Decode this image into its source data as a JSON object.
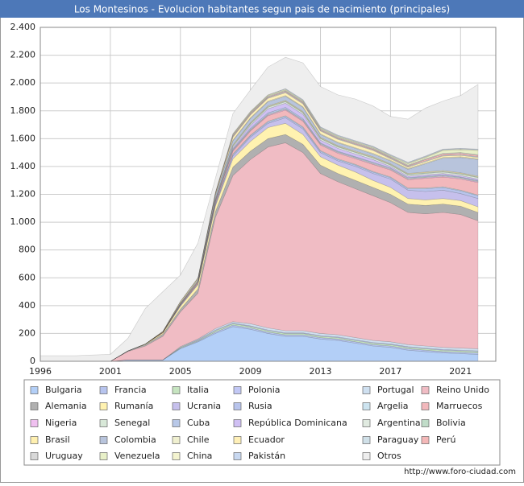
{
  "chart_data": {
    "type": "stacked_area",
    "title": "Los Montesinos - Evolucion habitantes segun pais de nacimiento (principales)",
    "source": "http://www.foro-ciudad.com",
    "categories": [
      "1996",
      null,
      null,
      null,
      "2001",
      null,
      null,
      null,
      "2005",
      null,
      null,
      null,
      "2009",
      null,
      null,
      null,
      "2013",
      null,
      null,
      null,
      "2017",
      null,
      null,
      null,
      "2021",
      null
    ],
    "ylim": [
      0,
      2400
    ],
    "yticks": [
      0,
      200,
      400,
      600,
      800,
      {
        "value": 1000,
        "label": "1.000"
      },
      {
        "value": 1200,
        "label": "1.200"
      },
      {
        "value": 1400,
        "label": "1.400"
      },
      {
        "value": 1600,
        "label": "1.600"
      },
      {
        "value": 1800,
        "label": "1.800"
      },
      {
        "value": 2000,
        "label": "2.000"
      },
      {
        "value": 2200,
        "label": "2.200"
      },
      {
        "value": 2400,
        "label": "2.400"
      }
    ],
    "grid": true,
    "series": [
      {
        "name": "Bulgaria",
        "color": "#b3cff7",
        "values": [
          0,
          0,
          0,
          0,
          0,
          10,
          10,
          10,
          90,
          140,
          200,
          250,
          230,
          200,
          180,
          180,
          160,
          150,
          130,
          110,
          100,
          80,
          70,
          60,
          55,
          50
        ]
      },
      {
        "name": "Francia",
        "color": "#b7c4ee",
        "values": [
          0,
          0,
          0,
          0,
          0,
          0,
          0,
          0,
          5,
          5,
          10,
          10,
          10,
          10,
          10,
          10,
          10,
          10,
          10,
          10,
          10,
          10,
          10,
          10,
          10,
          10
        ]
      },
      {
        "name": "Italia",
        "color": "#c6e4c0",
        "values": [
          0,
          0,
          0,
          0,
          0,
          0,
          0,
          0,
          5,
          5,
          10,
          10,
          10,
          10,
          10,
          10,
          10,
          10,
          10,
          10,
          10,
          10,
          10,
          10,
          10,
          10
        ]
      },
      {
        "name": "Polonia",
        "color": "#c2c8f5",
        "values": [
          0,
          0,
          0,
          0,
          0,
          0,
          0,
          0,
          0,
          5,
          5,
          5,
          5,
          5,
          5,
          5,
          5,
          5,
          5,
          5,
          5,
          5,
          5,
          5,
          5,
          5
        ]
      },
      {
        "name": "Portugal",
        "color": "#cfe0f0",
        "values": [
          0,
          0,
          0,
          0,
          0,
          0,
          0,
          0,
          5,
          5,
          10,
          10,
          15,
          15,
          15,
          15,
          15,
          15,
          15,
          15,
          15,
          15,
          15,
          15,
          15,
          15
        ]
      },
      {
        "name": "Reino Unido",
        "color": "#f0bcc4",
        "values": [
          0,
          0,
          0,
          0,
          0,
          60,
          100,
          170,
          250,
          330,
          800,
          1050,
          1180,
          1300,
          1350,
          1280,
          1150,
          1100,
          1070,
          1040,
          1000,
          950,
          950,
          970,
          960,
          920
        ]
      },
      {
        "name": "Alemania",
        "color": "#b0b0b0",
        "values": [
          0,
          0,
          0,
          0,
          0,
          5,
          10,
          15,
          20,
          30,
          40,
          60,
          60,
          60,
          60,
          60,
          60,
          60,
          60,
          60,
          60,
          60,
          60,
          60,
          60,
          60
        ]
      },
      {
        "name": "Rumanía",
        "color": "#fff2b0",
        "values": [
          0,
          0,
          0,
          0,
          0,
          0,
          5,
          10,
          20,
          30,
          40,
          60,
          70,
          80,
          80,
          70,
          60,
          60,
          60,
          50,
          50,
          40,
          40,
          40,
          40,
          40
        ]
      },
      {
        "name": "Ucrania",
        "color": "#c6c0ec",
        "values": [
          0,
          0,
          0,
          0,
          0,
          0,
          0,
          0,
          5,
          5,
          10,
          20,
          30,
          30,
          40,
          40,
          30,
          30,
          40,
          50,
          60,
          60,
          60,
          60,
          50,
          60
        ]
      },
      {
        "name": "Rusia",
        "color": "#b8c4ec",
        "values": [
          0,
          0,
          0,
          0,
          0,
          0,
          0,
          0,
          5,
          5,
          5,
          10,
          10,
          10,
          10,
          10,
          10,
          10,
          10,
          10,
          10,
          10,
          20,
          20,
          20,
          20
        ]
      },
      {
        "name": "Argelia",
        "color": "#cde4f0",
        "values": [
          0,
          0,
          0,
          0,
          0,
          0,
          0,
          0,
          0,
          0,
          5,
          5,
          5,
          5,
          5,
          5,
          5,
          5,
          5,
          5,
          5,
          5,
          5,
          5,
          5,
          5
        ]
      },
      {
        "name": "Marruecos",
        "color": "#f2b8bc",
        "values": [
          0,
          0,
          0,
          0,
          0,
          0,
          0,
          5,
          5,
          10,
          10,
          20,
          30,
          40,
          40,
          40,
          40,
          40,
          40,
          50,
          50,
          60,
          70,
          70,
          80,
          90
        ]
      },
      {
        "name": "Nigeria",
        "color": "#f0c0f0",
        "values": [
          0,
          0,
          0,
          0,
          0,
          0,
          0,
          0,
          0,
          0,
          5,
          5,
          5,
          5,
          5,
          5,
          5,
          5,
          5,
          5,
          5,
          5,
          5,
          5,
          5,
          5
        ]
      },
      {
        "name": "Senegal",
        "color": "#d8e8d8",
        "values": [
          0,
          0,
          0,
          0,
          0,
          0,
          0,
          0,
          0,
          0,
          0,
          5,
          5,
          5,
          5,
          5,
          5,
          5,
          5,
          5,
          5,
          5,
          5,
          5,
          5,
          5
        ]
      },
      {
        "name": "Cuba",
        "color": "#b8c8e8",
        "values": [
          0,
          0,
          0,
          0,
          0,
          0,
          0,
          0,
          0,
          0,
          5,
          5,
          10,
          10,
          10,
          10,
          5,
          5,
          5,
          5,
          5,
          5,
          5,
          5,
          5,
          5
        ]
      },
      {
        "name": "República Dominicana",
        "color": "#d0c0f4",
        "values": [
          0,
          0,
          0,
          0,
          0,
          0,
          0,
          0,
          0,
          0,
          5,
          10,
          20,
          30,
          30,
          30,
          20,
          20,
          20,
          20,
          10,
          10,
          10,
          10,
          10,
          10
        ]
      },
      {
        "name": "Argentina",
        "color": "#e0eae0",
        "values": [
          0,
          0,
          0,
          0,
          0,
          0,
          0,
          0,
          5,
          5,
          5,
          10,
          10,
          10,
          10,
          10,
          10,
          10,
          10,
          10,
          10,
          10,
          10,
          10,
          10,
          10
        ]
      },
      {
        "name": "Bolivia",
        "color": "#c0dcc8",
        "values": [
          0,
          0,
          0,
          0,
          0,
          0,
          0,
          0,
          0,
          0,
          0,
          5,
          5,
          5,
          5,
          5,
          5,
          5,
          5,
          5,
          5,
          5,
          5,
          5,
          5,
          5
        ]
      },
      {
        "name": "Brasil",
        "color": "#fff0b0",
        "values": [
          0,
          0,
          0,
          0,
          0,
          0,
          0,
          0,
          0,
          5,
          5,
          5,
          5,
          5,
          5,
          5,
          5,
          5,
          5,
          5,
          5,
          5,
          5,
          5,
          5,
          5
        ]
      },
      {
        "name": "Colombia",
        "color": "#b8c4dc",
        "values": [
          0,
          0,
          0,
          0,
          0,
          0,
          0,
          0,
          5,
          10,
          20,
          30,
          30,
          30,
          30,
          30,
          20,
          20,
          20,
          20,
          20,
          30,
          60,
          90,
          110,
          120
        ]
      },
      {
        "name": "Chile",
        "color": "#f0f0d0",
        "values": [
          0,
          0,
          0,
          0,
          0,
          0,
          0,
          0,
          0,
          0,
          5,
          5,
          5,
          5,
          5,
          5,
          5,
          5,
          5,
          5,
          5,
          5,
          5,
          5,
          5,
          5
        ]
      },
      {
        "name": "Ecuador",
        "color": "#fff0b8",
        "values": [
          0,
          0,
          0,
          0,
          0,
          0,
          0,
          5,
          10,
          10,
          10,
          20,
          20,
          20,
          20,
          20,
          20,
          20,
          20,
          20,
          10,
          10,
          10,
          10,
          10,
          10
        ]
      },
      {
        "name": "Paraguay",
        "color": "#d0e0e8",
        "values": [
          0,
          0,
          0,
          0,
          0,
          0,
          0,
          0,
          0,
          0,
          0,
          5,
          5,
          5,
          5,
          5,
          5,
          5,
          5,
          5,
          5,
          5,
          5,
          5,
          5,
          5
        ]
      },
      {
        "name": "Perú",
        "color": "#f4b8b8",
        "values": [
          0,
          0,
          0,
          0,
          0,
          0,
          0,
          0,
          0,
          0,
          5,
          5,
          5,
          5,
          5,
          5,
          5,
          5,
          5,
          5,
          5,
          5,
          10,
          10,
          10,
          10
        ]
      },
      {
        "name": "Uruguay",
        "color": "#d8d8d8",
        "values": [
          0,
          0,
          0,
          0,
          0,
          0,
          0,
          0,
          0,
          0,
          0,
          5,
          5,
          5,
          5,
          5,
          5,
          5,
          5,
          5,
          5,
          5,
          5,
          5,
          5,
          5
        ]
      },
      {
        "name": "Venezuela",
        "color": "#e8f0c8",
        "values": [
          0,
          0,
          0,
          0,
          0,
          0,
          0,
          0,
          0,
          0,
          0,
          5,
          5,
          5,
          5,
          5,
          5,
          5,
          5,
          5,
          5,
          10,
          10,
          20,
          20,
          30
        ]
      },
      {
        "name": "China",
        "color": "#f4f4d0",
        "values": [
          0,
          0,
          0,
          0,
          0,
          0,
          0,
          0,
          0,
          0,
          5,
          5,
          5,
          5,
          5,
          5,
          5,
          5,
          5,
          5,
          5,
          5,
          5,
          5,
          5,
          5
        ]
      },
      {
        "name": "Pakistán",
        "color": "#c8d8f0",
        "values": [
          0,
          0,
          0,
          0,
          0,
          0,
          0,
          0,
          0,
          0,
          0,
          0,
          0,
          0,
          5,
          5,
          5,
          5,
          5,
          5,
          5,
          5,
          5,
          5,
          5,
          5
        ]
      },
      {
        "name": "Otros",
        "color": "#eeeeee",
        "values": [
          40,
          40,
          40,
          45,
          50,
          90,
          255,
          285,
          190,
          250,
          100,
          145,
          155,
          200,
          225,
          265,
          290,
          290,
          300,
          290,
          275,
          310,
          345,
          345,
          380,
          465
        ]
      }
    ]
  }
}
